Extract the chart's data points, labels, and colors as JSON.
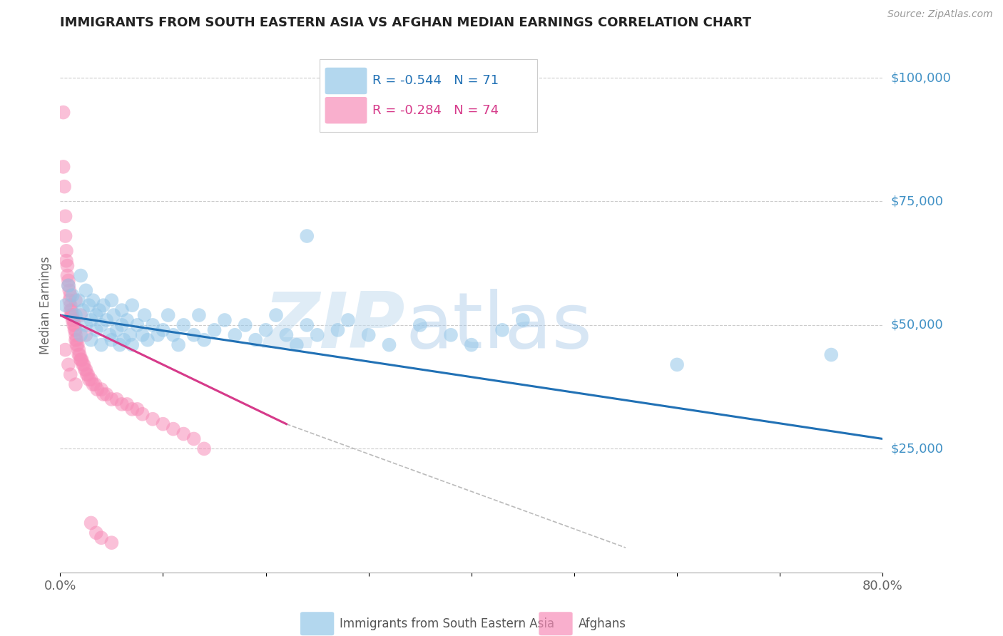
{
  "title": "IMMIGRANTS FROM SOUTH EASTERN ASIA VS AFGHAN MEDIAN EARNINGS CORRELATION CHART",
  "source": "Source: ZipAtlas.com",
  "ylabel": "Median Earnings",
  "watermark_zip": "ZIP",
  "watermark_atlas": "atlas",
  "legend_label_blue": "Immigrants from South Eastern Asia",
  "legend_label_pink": "Afghans",
  "legend_r_blue": "R = -0.544",
  "legend_n_blue": "N = 71",
  "legend_r_pink": "R = -0.284",
  "legend_n_pink": "N = 74",
  "xlim": [
    0,
    0.8
  ],
  "ylim": [
    0,
    108000
  ],
  "yticks": [
    25000,
    50000,
    75000,
    100000
  ],
  "ytick_labels": [
    "$25,000",
    "$50,000",
    "$75,000",
    "$100,000"
  ],
  "xticks": [
    0.0,
    0.1,
    0.2,
    0.3,
    0.4,
    0.5,
    0.6,
    0.7,
    0.8
  ],
  "xtick_labels": [
    "0.0%",
    "",
    "",
    "",
    "",
    "",
    "",
    "",
    "80.0%"
  ],
  "color_blue": "#93c6e8",
  "color_pink": "#f78db8",
  "color_trend_blue": "#2171b5",
  "color_trend_pink": "#d63a8a",
  "color_ytick": "#4292c6",
  "background": "#ffffff",
  "blue_x": [
    0.005,
    0.008,
    0.012,
    0.015,
    0.018,
    0.02,
    0.02,
    0.022,
    0.025,
    0.025,
    0.028,
    0.03,
    0.03,
    0.032,
    0.035,
    0.035,
    0.038,
    0.04,
    0.04,
    0.042,
    0.045,
    0.048,
    0.05,
    0.05,
    0.052,
    0.055,
    0.058,
    0.06,
    0.06,
    0.062,
    0.065,
    0.068,
    0.07,
    0.07,
    0.075,
    0.08,
    0.082,
    0.085,
    0.09,
    0.095,
    0.1,
    0.105,
    0.11,
    0.115,
    0.12,
    0.13,
    0.135,
    0.14,
    0.15,
    0.16,
    0.17,
    0.18,
    0.19,
    0.2,
    0.21,
    0.22,
    0.23,
    0.24,
    0.25,
    0.27,
    0.28,
    0.3,
    0.32,
    0.35,
    0.38,
    0.4,
    0.43,
    0.45,
    0.6,
    0.75,
    0.24
  ],
  "blue_y": [
    54000,
    58000,
    56000,
    52000,
    55000,
    60000,
    48000,
    53000,
    57000,
    50000,
    54000,
    51000,
    47000,
    55000,
    52000,
    49000,
    53000,
    50000,
    46000,
    54000,
    51000,
    48000,
    55000,
    47000,
    52000,
    49000,
    46000,
    53000,
    50000,
    47000,
    51000,
    48000,
    54000,
    46000,
    50000,
    48000,
    52000,
    47000,
    50000,
    48000,
    49000,
    52000,
    48000,
    46000,
    50000,
    48000,
    52000,
    47000,
    49000,
    51000,
    48000,
    50000,
    47000,
    49000,
    52000,
    48000,
    46000,
    50000,
    48000,
    49000,
    51000,
    48000,
    46000,
    50000,
    48000,
    46000,
    49000,
    51000,
    42000,
    44000,
    68000
  ],
  "pink_x": [
    0.003,
    0.003,
    0.004,
    0.005,
    0.005,
    0.006,
    0.006,
    0.007,
    0.007,
    0.008,
    0.008,
    0.009,
    0.009,
    0.01,
    0.01,
    0.01,
    0.011,
    0.011,
    0.012,
    0.012,
    0.013,
    0.013,
    0.014,
    0.014,
    0.015,
    0.015,
    0.015,
    0.016,
    0.016,
    0.017,
    0.018,
    0.018,
    0.019,
    0.02,
    0.02,
    0.021,
    0.022,
    0.023,
    0.024,
    0.025,
    0.026,
    0.027,
    0.028,
    0.03,
    0.032,
    0.034,
    0.036,
    0.04,
    0.042,
    0.045,
    0.05,
    0.055,
    0.06,
    0.065,
    0.07,
    0.075,
    0.08,
    0.09,
    0.1,
    0.11,
    0.12,
    0.13,
    0.14,
    0.015,
    0.02,
    0.025,
    0.005,
    0.008,
    0.01,
    0.015,
    0.03,
    0.035,
    0.04,
    0.05
  ],
  "pink_y": [
    93000,
    82000,
    78000,
    72000,
    68000,
    65000,
    63000,
    62000,
    60000,
    59000,
    58000,
    57000,
    55000,
    56000,
    54000,
    53000,
    53000,
    52000,
    52000,
    51000,
    51000,
    50000,
    50000,
    49000,
    49000,
    48000,
    47000,
    47000,
    46000,
    46000,
    45000,
    44000,
    44000,
    43000,
    43000,
    43000,
    42000,
    42000,
    41000,
    41000,
    40000,
    40000,
    39000,
    39000,
    38000,
    38000,
    37000,
    37000,
    36000,
    36000,
    35000,
    35000,
    34000,
    34000,
    33000,
    33000,
    32000,
    31000,
    30000,
    29000,
    28000,
    27000,
    25000,
    55000,
    52000,
    48000,
    45000,
    42000,
    40000,
    38000,
    10000,
    8000,
    7000,
    6000
  ],
  "trend_blue_x0": 0.0,
  "trend_blue_x1": 0.8,
  "trend_blue_y0": 52000,
  "trend_blue_y1": 27000,
  "trend_pink_x0": 0.0,
  "trend_pink_x1": 0.22,
  "trend_pink_y0": 52000,
  "trend_pink_y1": 30000,
  "trend_pink_dash_x0": 0.22,
  "trend_pink_dash_x1": 0.55,
  "trend_pink_dash_y0": 30000,
  "trend_pink_dash_y1": 5000
}
